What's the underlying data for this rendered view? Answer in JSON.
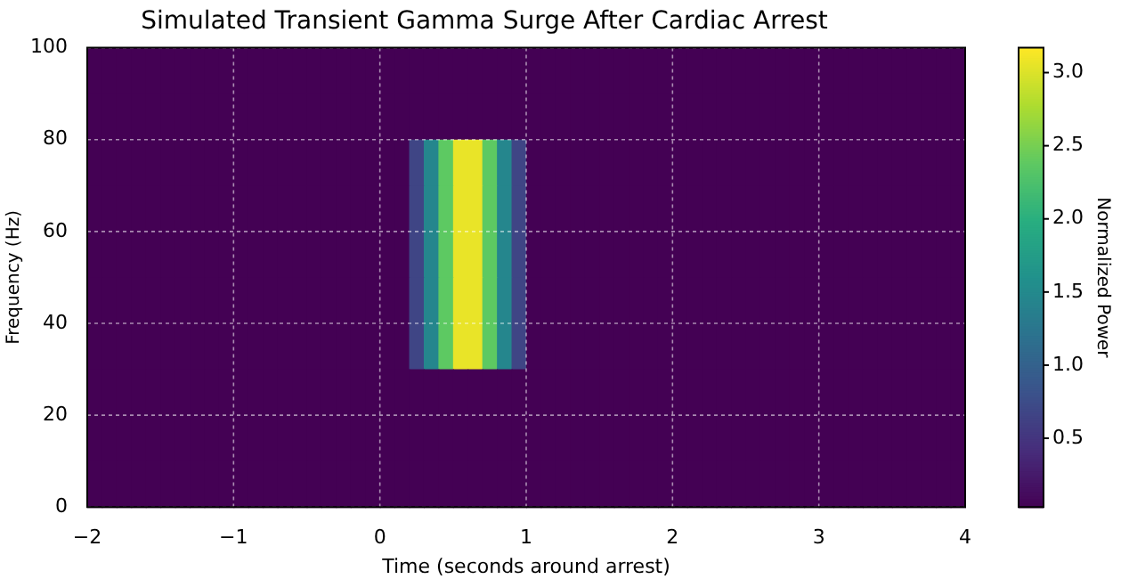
{
  "chart_data": {
    "type": "heatmap",
    "title": "Simulated Transient Gamma Surge After Cardiac Arrest",
    "xlabel": "Time (seconds around arrest)",
    "ylabel": "Frequency (Hz)",
    "clabel": "Normalized Power",
    "x": [
      -1.95,
      -1.85,
      -1.75,
      -1.65,
      -1.55,
      -1.45,
      -1.35,
      -1.25,
      -1.15,
      -1.05,
      -0.95,
      -0.85,
      -0.75,
      -0.65,
      -0.55,
      -0.45,
      -0.35,
      -0.25,
      -0.15,
      -0.05,
      0.05,
      0.15,
      0.25,
      0.35,
      0.45,
      0.55,
      0.65,
      0.75,
      0.85,
      0.95,
      1.05,
      1.15,
      1.25,
      1.35,
      1.45,
      1.55,
      1.65,
      1.75,
      1.85,
      1.95,
      2.05,
      2.15,
      2.25,
      2.35,
      2.45,
      2.55,
      2.65,
      2.75,
      2.85,
      2.95,
      3.05,
      3.15,
      3.25,
      3.35,
      3.45,
      3.55,
      3.65,
      3.75,
      3.85,
      3.95
    ],
    "y": [
      95,
      85,
      75,
      65,
      55,
      45,
      35,
      25,
      15,
      5
    ],
    "cells": [
      [
        0.03,
        0.03,
        0.03,
        0.03,
        0.03,
        0.03,
        0.03,
        0.03,
        0.03,
        0.03,
        0.03,
        0.03,
        0.03,
        0.03,
        0.03,
        0.03,
        0.03,
        0.03,
        0.03,
        0.03,
        0.03,
        0.03,
        0.03,
        0.03,
        0.03,
        0.03,
        0.03,
        0.03,
        0.03,
        0.03,
        0.03,
        0.03,
        0.03,
        0.03,
        0.03,
        0.03,
        0.03,
        0.03,
        0.03,
        0.03,
        0.03,
        0.03,
        0.03,
        0.03,
        0.03,
        0.03,
        0.03,
        0.03,
        0.03,
        0.03,
        0.03,
        0.03,
        0.03,
        0.03,
        0.03,
        0.03,
        0.03,
        0.03,
        0.03,
        0.03
      ],
      [
        0.03,
        0.03,
        0.03,
        0.03,
        0.03,
        0.03,
        0.03,
        0.03,
        0.03,
        0.03,
        0.03,
        0.03,
        0.03,
        0.03,
        0.03,
        0.03,
        0.03,
        0.03,
        0.03,
        0.03,
        0.03,
        0.03,
        0.03,
        0.03,
        0.03,
        0.03,
        0.03,
        0.03,
        0.03,
        0.03,
        0.03,
        0.03,
        0.03,
        0.03,
        0.03,
        0.03,
        0.03,
        0.03,
        0.03,
        0.03,
        0.03,
        0.03,
        0.03,
        0.03,
        0.03,
        0.03,
        0.03,
        0.03,
        0.03,
        0.03,
        0.03,
        0.03,
        0.03,
        0.03,
        0.03,
        0.03,
        0.03,
        0.03,
        0.03,
        0.03
      ],
      [
        0.03,
        0.03,
        0.03,
        0.03,
        0.03,
        0.03,
        0.03,
        0.03,
        0.03,
        0.03,
        0.03,
        0.03,
        0.03,
        0.03,
        0.03,
        0.03,
        0.03,
        0.03,
        0.03,
        0.03,
        0.03,
        0.03,
        0.68,
        1.46,
        2.38,
        3.07,
        3.07,
        2.38,
        1.46,
        0.68,
        0.03,
        0.03,
        0.03,
        0.03,
        0.03,
        0.03,
        0.03,
        0.03,
        0.03,
        0.03,
        0.03,
        0.03,
        0.03,
        0.03,
        0.03,
        0.03,
        0.03,
        0.03,
        0.03,
        0.03,
        0.03,
        0.03,
        0.03,
        0.03,
        0.03,
        0.03,
        0.03,
        0.03,
        0.03,
        0.03
      ],
      [
        0.03,
        0.03,
        0.03,
        0.03,
        0.03,
        0.03,
        0.03,
        0.03,
        0.03,
        0.03,
        0.03,
        0.03,
        0.03,
        0.03,
        0.03,
        0.03,
        0.03,
        0.03,
        0.03,
        0.03,
        0.03,
        0.03,
        0.68,
        1.46,
        2.38,
        3.07,
        3.07,
        2.38,
        1.46,
        0.68,
        0.03,
        0.03,
        0.03,
        0.03,
        0.03,
        0.03,
        0.03,
        0.03,
        0.03,
        0.03,
        0.03,
        0.03,
        0.03,
        0.03,
        0.03,
        0.03,
        0.03,
        0.03,
        0.03,
        0.03,
        0.03,
        0.03,
        0.03,
        0.03,
        0.03,
        0.03,
        0.03,
        0.03,
        0.03,
        0.03
      ],
      [
        0.03,
        0.03,
        0.03,
        0.03,
        0.03,
        0.03,
        0.03,
        0.03,
        0.03,
        0.03,
        0.03,
        0.03,
        0.03,
        0.03,
        0.03,
        0.03,
        0.03,
        0.03,
        0.03,
        0.03,
        0.03,
        0.03,
        0.68,
        1.46,
        2.38,
        3.07,
        3.07,
        2.38,
        1.46,
        0.68,
        0.03,
        0.03,
        0.03,
        0.03,
        0.03,
        0.03,
        0.03,
        0.03,
        0.03,
        0.03,
        0.03,
        0.03,
        0.03,
        0.03,
        0.03,
        0.03,
        0.03,
        0.03,
        0.03,
        0.03,
        0.03,
        0.03,
        0.03,
        0.03,
        0.03,
        0.03,
        0.03,
        0.03,
        0.03,
        0.03
      ],
      [
        0.03,
        0.03,
        0.03,
        0.03,
        0.03,
        0.03,
        0.03,
        0.03,
        0.03,
        0.03,
        0.03,
        0.03,
        0.03,
        0.03,
        0.03,
        0.03,
        0.03,
        0.03,
        0.03,
        0.03,
        0.03,
        0.03,
        0.68,
        1.46,
        2.38,
        3.07,
        3.07,
        2.38,
        1.46,
        0.68,
        0.03,
        0.03,
        0.03,
        0.03,
        0.03,
        0.03,
        0.03,
        0.03,
        0.03,
        0.03,
        0.03,
        0.03,
        0.03,
        0.03,
        0.03,
        0.03,
        0.03,
        0.03,
        0.03,
        0.03,
        0.03,
        0.03,
        0.03,
        0.03,
        0.03,
        0.03,
        0.03,
        0.03,
        0.03,
        0.03
      ],
      [
        0.03,
        0.03,
        0.03,
        0.03,
        0.03,
        0.03,
        0.03,
        0.03,
        0.03,
        0.03,
        0.03,
        0.03,
        0.03,
        0.03,
        0.03,
        0.03,
        0.03,
        0.03,
        0.03,
        0.03,
        0.03,
        0.03,
        0.68,
        1.46,
        2.38,
        3.07,
        3.07,
        2.38,
        1.46,
        0.68,
        0.03,
        0.03,
        0.03,
        0.03,
        0.03,
        0.03,
        0.03,
        0.03,
        0.03,
        0.03,
        0.03,
        0.03,
        0.03,
        0.03,
        0.03,
        0.03,
        0.03,
        0.03,
        0.03,
        0.03,
        0.03,
        0.03,
        0.03,
        0.03,
        0.03,
        0.03,
        0.03,
        0.03,
        0.03,
        0.03
      ],
      [
        0.03,
        0.03,
        0.03,
        0.03,
        0.03,
        0.03,
        0.03,
        0.03,
        0.03,
        0.03,
        0.03,
        0.03,
        0.03,
        0.03,
        0.03,
        0.03,
        0.03,
        0.03,
        0.03,
        0.03,
        0.03,
        0.03,
        0.03,
        0.03,
        0.03,
        0.03,
        0.03,
        0.03,
        0.03,
        0.03,
        0.03,
        0.03,
        0.03,
        0.03,
        0.03,
        0.03,
        0.03,
        0.03,
        0.03,
        0.03,
        0.03,
        0.03,
        0.03,
        0.03,
        0.03,
        0.03,
        0.03,
        0.03,
        0.03,
        0.03,
        0.03,
        0.03,
        0.03,
        0.03,
        0.03,
        0.03,
        0.03,
        0.03,
        0.03,
        0.03
      ],
      [
        0.03,
        0.03,
        0.03,
        0.03,
        0.03,
        0.03,
        0.03,
        0.03,
        0.03,
        0.03,
        0.03,
        0.03,
        0.03,
        0.03,
        0.03,
        0.03,
        0.03,
        0.03,
        0.03,
        0.03,
        0.03,
        0.03,
        0.03,
        0.03,
        0.03,
        0.03,
        0.03,
        0.03,
        0.03,
        0.03,
        0.03,
        0.03,
        0.03,
        0.03,
        0.03,
        0.03,
        0.03,
        0.03,
        0.03,
        0.03,
        0.03,
        0.03,
        0.03,
        0.03,
        0.03,
        0.03,
        0.03,
        0.03,
        0.03,
        0.03,
        0.03,
        0.03,
        0.03,
        0.03,
        0.03,
        0.03,
        0.03,
        0.03,
        0.03,
        0.03
      ],
      [
        0.03,
        0.03,
        0.03,
        0.03,
        0.03,
        0.03,
        0.03,
        0.03,
        0.03,
        0.03,
        0.03,
        0.03,
        0.03,
        0.03,
        0.03,
        0.03,
        0.03,
        0.03,
        0.03,
        0.03,
        0.03,
        0.03,
        0.03,
        0.03,
        0.03,
        0.03,
        0.03,
        0.03,
        0.03,
        0.03,
        0.03,
        0.03,
        0.03,
        0.03,
        0.03,
        0.03,
        0.03,
        0.03,
        0.03,
        0.03,
        0.03,
        0.03,
        0.03,
        0.03,
        0.03,
        0.03,
        0.03,
        0.03,
        0.03,
        0.03,
        0.03,
        0.03,
        0.03,
        0.03,
        0.03,
        0.03,
        0.03,
        0.03,
        0.03,
        0.03
      ]
    ],
    "xlim": [
      -2,
      4
    ],
    "xticks": [
      {
        "value": -2,
        "label": "−2"
      },
      {
        "value": -1,
        "label": "−1"
      },
      0,
      1,
      2,
      3,
      4
    ],
    "ylim": [
      0,
      100
    ],
    "yticks": [
      0,
      20,
      40,
      60,
      80,
      100
    ],
    "clim": [
      0.03,
      3.17
    ],
    "cticks": [
      {
        "value": 0.5,
        "label": "0.5"
      },
      {
        "value": 1,
        "label": "1.0"
      },
      {
        "value": 1.5,
        "label": "1.5"
      },
      {
        "value": 2,
        "label": "2.0"
      },
      {
        "value": 2.5,
        "label": "2.5"
      },
      {
        "value": 3,
        "label": "3.0"
      }
    ],
    "grid": true
  }
}
